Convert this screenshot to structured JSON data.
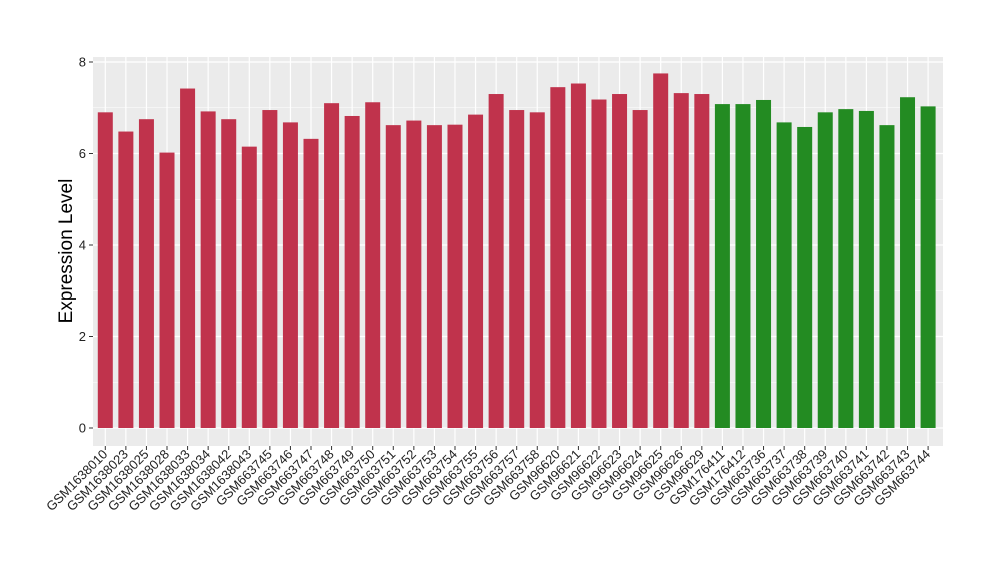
{
  "chart_data": {
    "type": "bar",
    "title": "",
    "xlabel": "",
    "ylabel": "Expression Level",
    "ylim": [
      0,
      8.1
    ],
    "yticks": [
      0,
      2,
      4,
      6,
      8
    ],
    "grid": true,
    "legend": "none",
    "colors": {
      "group1": "#c0334c",
      "group2": "#238b22",
      "panel": "#ebebeb",
      "grid": "#ffffff"
    },
    "categories": [
      "GSM1638010",
      "GSM1638023",
      "GSM1638025",
      "GSM1638028",
      "GSM1638033",
      "GSM1638034",
      "GSM1638042",
      "GSM1638043",
      "GSM663745",
      "GSM663746",
      "GSM663747",
      "GSM663748",
      "GSM663749",
      "GSM663750",
      "GSM663751",
      "GSM663752",
      "GSM663753",
      "GSM663754",
      "GSM663755",
      "GSM663756",
      "GSM663757",
      "GSM663758",
      "GSM96620",
      "GSM96621",
      "GSM96622",
      "GSM96623",
      "GSM96624",
      "GSM96625",
      "GSM96626",
      "GSM96629",
      "GSM176411",
      "GSM176412",
      "GSM663736",
      "GSM663737",
      "GSM663738",
      "GSM663739",
      "GSM663740",
      "GSM663741",
      "GSM663742",
      "GSM663743",
      "GSM663744"
    ],
    "values": [
      6.9,
      6.48,
      6.75,
      6.02,
      7.42,
      6.92,
      6.75,
      6.15,
      6.95,
      6.68,
      6.32,
      7.1,
      6.82,
      7.12,
      6.62,
      6.72,
      6.62,
      6.63,
      6.85,
      7.3,
      6.95,
      6.9,
      7.45,
      7.53,
      7.18,
      7.3,
      6.95,
      7.75,
      7.32,
      7.3,
      7.08,
      7.08,
      7.17,
      6.68,
      6.58,
      6.9,
      6.97,
      6.93,
      6.62,
      7.23,
      7.03
    ],
    "groups": [
      "group1",
      "group1",
      "group1",
      "group1",
      "group1",
      "group1",
      "group1",
      "group1",
      "group1",
      "group1",
      "group1",
      "group1",
      "group1",
      "group1",
      "group1",
      "group1",
      "group1",
      "group1",
      "group1",
      "group1",
      "group1",
      "group1",
      "group1",
      "group1",
      "group1",
      "group1",
      "group1",
      "group1",
      "group1",
      "group1",
      "group2",
      "group2",
      "group2",
      "group2",
      "group2",
      "group2",
      "group2",
      "group2",
      "group2",
      "group2",
      "group2"
    ]
  }
}
